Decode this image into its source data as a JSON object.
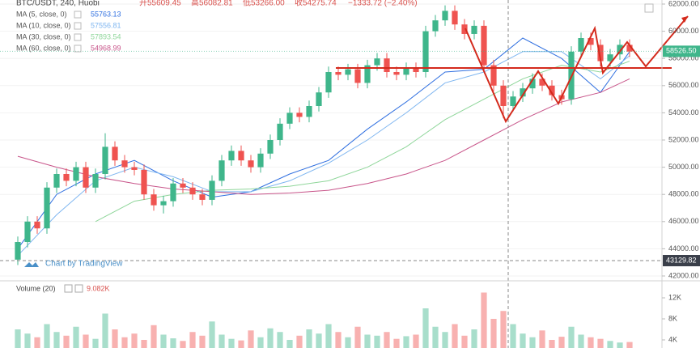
{
  "chart_data": {
    "type": "candlestick",
    "title": "BTC/USDT, 240, Huobi",
    "ohlc_header": [
      "开55609.45",
      "高56082.81",
      "低53266.00",
      "收54275.74",
      "−1333.72 (−2.40%)"
    ],
    "watermark": "Chart by TradingView",
    "up_color": "#3fb68b",
    "down_color": "#ef5350",
    "xlim": [
      -1,
      64
    ],
    "ylim": [
      42000,
      62000
    ],
    "yticks": [
      {
        "value": 42000,
        "label": "42000.00"
      },
      {
        "value": 44000,
        "label": "44000.00"
      },
      {
        "value": 46000,
        "label": "46000.00"
      },
      {
        "value": 48000,
        "label": "48000.00"
      },
      {
        "value": 50000,
        "label": "50000.00"
      },
      {
        "value": 52000,
        "label": "52000.00"
      },
      {
        "value": 54000,
        "label": "54000.00"
      },
      {
        "value": 56000,
        "label": "56000.00"
      },
      {
        "value": 58000,
        "label": "58000.00"
      },
      {
        "value": 60000,
        "label": "60000.00"
      },
      {
        "value": 62000,
        "label": "62000.00"
      }
    ],
    "last_price": {
      "value": 58526.5,
      "label": "58526.50"
    },
    "crosshair_price": {
      "value": 43129.82,
      "label": "43129.82"
    },
    "candles": {
      "open": [
        43200,
        44500,
        46000,
        45500,
        48500,
        49500,
        49000,
        50000,
        48500,
        49500,
        51500,
        50500,
        50000,
        49800,
        48000,
        47200,
        47500,
        48800,
        48500,
        48000,
        47600,
        49000,
        50500,
        51200,
        50500,
        50000,
        51000,
        52000,
        53200,
        54000,
        53700,
        54500,
        55500,
        57000,
        56800,
        57200,
        56200,
        57500,
        58000,
        57000,
        56800,
        57300,
        57000,
        60000,
        60800,
        61500,
        60500,
        59800,
        60400,
        57500,
        56000,
        54500,
        55200,
        55800,
        56500,
        56000,
        55300,
        55000,
        58500,
        59500,
        59000,
        57800,
        58300,
        59000
      ],
      "high": [
        44900,
        46400,
        46400,
        48900,
        49900,
        49900,
        50400,
        50400,
        49900,
        52500,
        51900,
        50900,
        50400,
        50200,
        48400,
        47900,
        49200,
        49200,
        48900,
        48400,
        49400,
        50900,
        51600,
        51600,
        50900,
        51400,
        52400,
        53600,
        54400,
        54400,
        54900,
        55900,
        57400,
        57400,
        57600,
        57600,
        57900,
        58400,
        58400,
        57400,
        57700,
        57700,
        60400,
        61200,
        61900,
        61900,
        60900,
        60800,
        60800,
        57900,
        56400,
        55600,
        56200,
        56900,
        56900,
        56400,
        55700,
        58900,
        59900,
        59900,
        59400,
        58700,
        59400,
        59400
      ],
      "low": [
        42800,
        44100,
        45100,
        45100,
        48100,
        48600,
        48600,
        48100,
        48100,
        49100,
        50100,
        49600,
        49400,
        47600,
        46800,
        46600,
        47100,
        48100,
        47600,
        47200,
        47200,
        48600,
        50100,
        50100,
        49600,
        49600,
        50600,
        51600,
        52800,
        53300,
        53300,
        54100,
        55100,
        56400,
        56400,
        55800,
        55800,
        57100,
        56600,
        56400,
        56400,
        56600,
        56600,
        59600,
        60400,
        60100,
        59400,
        59400,
        57100,
        55600,
        53600,
        54100,
        54800,
        55400,
        55600,
        54900,
        54600,
        54600,
        58100,
        58600,
        57400,
        57400,
        57900,
        58100
      ],
      "close": [
        44500,
        46000,
        45500,
        48500,
        49500,
        49000,
        50000,
        48500,
        49500,
        51500,
        50500,
        50000,
        49800,
        48000,
        47200,
        47500,
        48800,
        48500,
        48000,
        47600,
        49000,
        50500,
        51200,
        50500,
        50000,
        51000,
        52000,
        53200,
        54000,
        53700,
        54500,
        55500,
        57000,
        56800,
        57200,
        56200,
        57500,
        58000,
        57000,
        56800,
        57300,
        57000,
        60000,
        60800,
        61500,
        60500,
        59800,
        60400,
        57500,
        56000,
        54500,
        55200,
        55800,
        56500,
        56000,
        55300,
        55000,
        58500,
        59500,
        59000,
        57800,
        58300,
        59000,
        58500
      ]
    },
    "ma_x": [
      0,
      4,
      8,
      12,
      16,
      20,
      24,
      28,
      32,
      36,
      40,
      44,
      48,
      52,
      56,
      60,
      63
    ],
    "series": [
      {
        "name": "MA (5, close, 0)",
        "color": "#2f6fe0",
        "legend_value": 55763.13,
        "values": [
          44000,
          48000,
          49500,
          50500,
          49000,
          47800,
          48200,
          49500,
          50500,
          52800,
          54800,
          57000,
          57200,
          59500,
          58000,
          55500,
          58500
        ]
      },
      {
        "name": "MA (10, close, 0)",
        "color": "#7fb6f0",
        "legend_value": 57556.81,
        "values": [
          43500,
          46500,
          49000,
          50000,
          49300,
          48200,
          48200,
          49000,
          50300,
          52000,
          54000,
          56200,
          57000,
          58500,
          58500,
          56500,
          58200
        ]
      },
      {
        "name": "MA (30, close, 0)",
        "color": "#8fd69a",
        "legend_value": 57893.54,
        "values": [
          null,
          null,
          46000,
          47500,
          48000,
          48300,
          48400,
          48600,
          49000,
          50000,
          51500,
          53500,
          55000,
          56500,
          57500,
          57000,
          57800
        ]
      },
      {
        "name": "MA (60, close, 0)",
        "color": "#c8558a",
        "legend_value": 54968.99,
        "values": [
          50800,
          50000,
          49300,
          48800,
          48400,
          48200,
          48000,
          48100,
          48300,
          48800,
          49500,
          50500,
          52000,
          53500,
          54800,
          55500,
          56500
        ]
      }
    ],
    "volume": {
      "title": "Volume (20)",
      "legend_value": {
        "value": 9082,
        "label": "9.082K"
      },
      "ylim": [
        2460,
        14460
      ],
      "yticks": [
        {
          "value": 4000,
          "label": "4K"
        },
        {
          "value": 8000,
          "label": "8K"
        },
        {
          "value": 12000,
          "label": "12K"
        }
      ],
      "values": [
        6000,
        5200,
        4500,
        7000,
        5500,
        4800,
        6500,
        5000,
        4200,
        9000,
        6000,
        4500,
        5200,
        4000,
        6800,
        5000,
        4300,
        3800,
        5500,
        4800,
        7500,
        5000,
        4200,
        3900,
        5800,
        4500,
        6200,
        5500,
        4000,
        4800,
        6000,
        5200,
        7000,
        5500,
        4500,
        6500,
        5000,
        4800,
        5500,
        4200,
        4700,
        5000,
        10000,
        6500,
        5500,
        7000,
        4800,
        6000,
        13000,
        8000,
        9500,
        7000,
        5200,
        4500,
        5800,
        4000,
        4600,
        6500,
        5000,
        4500,
        4200,
        3800,
        3500,
        3600
      ]
    }
  }
}
